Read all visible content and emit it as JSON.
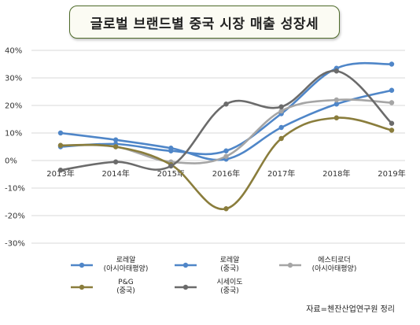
{
  "title": "글로벌 브랜드별 중국 시장 매출 성장세",
  "source_note": "자료=첸잔산업연구원 정리",
  "chart_data": {
    "type": "line",
    "title": "글로벌 브랜드별 중국 시장 매출 성장세",
    "xlabel": "",
    "ylabel": "",
    "categories": [
      "2013年",
      "2014年",
      "2015年",
      "2016年",
      "2017年",
      "2018年",
      "2019年"
    ],
    "ylim": [
      -30,
      40
    ],
    "y_ticks": [
      -30,
      -20,
      -10,
      0,
      10,
      20,
      30,
      40
    ],
    "y_tick_labels": [
      "-30%",
      "-20%",
      "-10%",
      "0%",
      "10%",
      "20%",
      "30%",
      "40%"
    ],
    "grid": true,
    "legend_position": "bottom",
    "series": [
      {
        "name": "로레알\n(아시아태평양)",
        "color": "#4f86c8",
        "values": [
          10,
          7.5,
          4.5,
          0.5,
          12,
          20.5,
          25.5
        ]
      },
      {
        "name": "로레알\n(중국)",
        "color": "#4f86c8",
        "values": [
          5,
          6,
          3.5,
          3.5,
          17,
          33.5,
          35
        ]
      },
      {
        "name": "에스티로더\n(아시아태평양)",
        "color": "#a5a5a5",
        "values": [
          5.5,
          5,
          -0.5,
          1.5,
          18,
          22,
          21
        ]
      },
      {
        "name": "P&G\n(중국)",
        "color": "#8a7d3c",
        "values": [
          5.5,
          5,
          -1.5,
          -17.5,
          8,
          15.5,
          11
        ]
      },
      {
        "name": "시세이도\n(중국)",
        "color": "#6b6b6b",
        "values": [
          -3.5,
          -0.5,
          -2,
          20.5,
          19.5,
          32.5,
          13.5
        ]
      }
    ]
  }
}
